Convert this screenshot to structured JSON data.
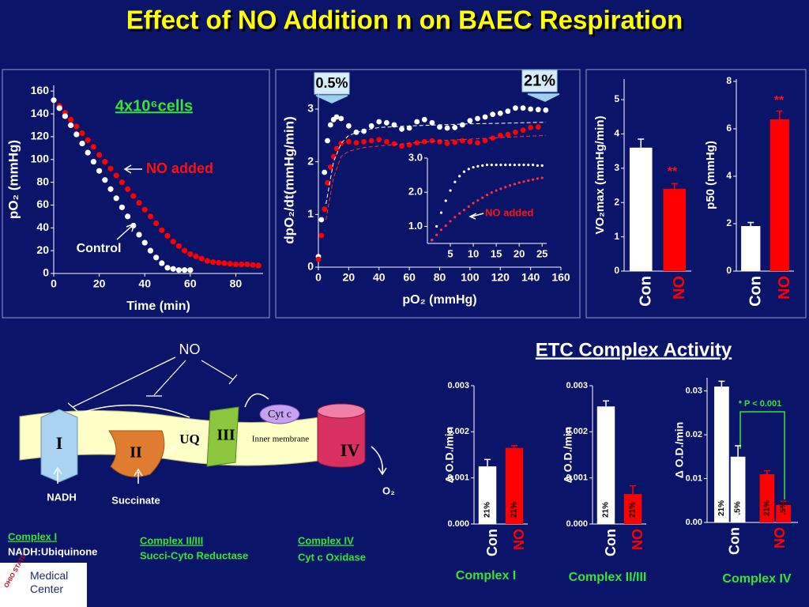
{
  "title": "Effect of NO Addition n on BAEC Respiration",
  "subtitle": "ETC Complex Activity",
  "chart_data": [
    {
      "type": "line",
      "xlabel": "Time (min)",
      "ylabel": "pO₂ (mmHg)",
      "annotations": [
        "4x10⁶cells",
        "NO added",
        "Control"
      ],
      "xlim": [
        0,
        92
      ],
      "xticks": [
        0,
        20,
        40,
        60,
        80
      ],
      "ylim": [
        0,
        165
      ],
      "yticks": [
        0,
        20,
        40,
        60,
        80,
        100,
        120,
        140,
        160
      ],
      "series": [
        {
          "name": "NO added",
          "color": "#ff0000",
          "style": "dots",
          "x": [
            0,
            2.5,
            5,
            7.5,
            10,
            12.5,
            15,
            17.5,
            20,
            22.5,
            25,
            27.5,
            30,
            32.5,
            35,
            37.5,
            40,
            42.5,
            45,
            47.5,
            50,
            52.5,
            55,
            57.5,
            60,
            62.5,
            65,
            67.5,
            70,
            72.5,
            75,
            77.5,
            80,
            82.5,
            85,
            87.5,
            90
          ],
          "values": [
            152,
            147,
            141,
            135,
            129,
            123,
            117,
            111,
            104,
            98,
            92,
            86,
            80,
            74,
            68,
            62,
            56,
            50,
            44,
            38,
            33,
            28,
            24,
            20,
            17,
            15,
            13,
            11,
            10,
            9.5,
            9,
            8.5,
            8,
            8,
            8,
            7.5,
            7
          ]
        },
        {
          "name": "Control",
          "color": "#ffffff",
          "style": "dots",
          "x": [
            0,
            2.5,
            5,
            7.5,
            10,
            12.5,
            15,
            17.5,
            20,
            22.5,
            25,
            27.5,
            30,
            32.5,
            35,
            37.5,
            40,
            42.5,
            45,
            47.5,
            50,
            52.5,
            55,
            57.5,
            60
          ],
          "values": [
            152,
            145,
            138,
            130,
            122,
            114,
            106,
            98,
            90,
            82,
            74,
            66,
            58,
            50,
            42,
            34,
            27,
            20,
            14,
            9,
            5,
            4,
            3,
            3,
            3
          ]
        }
      ]
    },
    {
      "type": "line",
      "xlabel": "pO₂ (mmHg)",
      "ylabel": "dpO₂/dt(mmHg/min)",
      "annotations": [
        "0.5%",
        "21%"
      ],
      "xlim": [
        0,
        160
      ],
      "xticks": [
        0,
        20,
        40,
        60,
        80,
        100,
        120,
        140,
        160
      ],
      "ylim": [
        0,
        3.3
      ],
      "yticks": [
        0,
        1,
        2,
        3
      ],
      "series": [
        {
          "color": "#ffffff",
          "style": "dots",
          "x": [
            0,
            2,
            4,
            6,
            8,
            10,
            12,
            15,
            20,
            25,
            30,
            35,
            40,
            45,
            50,
            55,
            60,
            65,
            70,
            75,
            80,
            85,
            90,
            95,
            100,
            105,
            110,
            115,
            120,
            125,
            130,
            135,
            140,
            145,
            150
          ],
          "values": [
            0.2,
            0.9,
            1.8,
            2.4,
            2.7,
            2.8,
            2.85,
            2.82,
            2.68,
            2.56,
            2.58,
            2.68,
            2.76,
            2.74,
            2.7,
            2.62,
            2.64,
            2.76,
            2.8,
            2.74,
            2.66,
            2.64,
            2.65,
            2.7,
            2.78,
            2.82,
            2.85,
            2.9,
            2.92,
            2.96,
            3.02,
            3.02,
            3.0,
            2.99,
            2.98
          ]
        },
        {
          "color": "#ff0000",
          "style": "dots",
          "x": [
            0,
            2,
            4,
            6,
            8,
            10,
            12,
            15,
            20,
            25,
            30,
            35,
            40,
            45,
            50,
            55,
            60,
            65,
            70,
            75,
            80,
            85,
            90,
            95,
            100,
            105,
            110,
            115,
            120,
            125,
            130,
            135,
            140,
            145
          ],
          "values": [
            0.15,
            0.6,
            1.1,
            1.6,
            1.9,
            2.1,
            2.25,
            2.35,
            2.38,
            2.36,
            2.38,
            2.4,
            2.42,
            2.38,
            2.34,
            2.3,
            2.32,
            2.36,
            2.38,
            2.4,
            2.38,
            2.35,
            2.37,
            2.4,
            2.38,
            2.36,
            2.4,
            2.45,
            2.5,
            2.52,
            2.56,
            2.6,
            2.65,
            2.66
          ]
        },
        {
          "color": "#ffffff",
          "style": "dashed",
          "x": [
            5,
            10,
            15,
            20,
            30,
            40,
            60,
            80,
            100,
            120,
            150
          ],
          "values": [
            1.2,
            2.0,
            2.35,
            2.5,
            2.6,
            2.65,
            2.68,
            2.7,
            2.72,
            2.73,
            2.75
          ]
        },
        {
          "color": "#ff3030",
          "style": "dashed",
          "x": [
            5,
            10,
            15,
            20,
            30,
            40,
            60,
            80,
            100,
            120,
            150
          ],
          "values": [
            0.9,
            1.7,
            2.1,
            2.2,
            2.27,
            2.3,
            2.35,
            2.4,
            2.43,
            2.46,
            2.5
          ]
        }
      ]
    },
    {
      "type": "line",
      "annotations": [
        "NO added"
      ],
      "xlim": [
        0,
        26
      ],
      "xticks": [
        5,
        10,
        15,
        20,
        25
      ],
      "ylim": [
        0.5,
        3.0
      ],
      "yticks": [
        {
          "value": 1,
          "label": "1.0"
        },
        {
          "value": 2,
          "label": "2.0"
        },
        {
          "value": 3,
          "label": "3.0"
        }
      ],
      "series": [
        {
          "color": "#ffffff",
          "style": "dots",
          "x": [
            1,
            2,
            3,
            4,
            5,
            6,
            7,
            8,
            9,
            10,
            11,
            12,
            13,
            14,
            15,
            16,
            17,
            18,
            19,
            20,
            21,
            22,
            23,
            24,
            25
          ],
          "values": [
            0.6,
            1.0,
            1.4,
            1.75,
            2.05,
            2.3,
            2.47,
            2.6,
            2.68,
            2.73,
            2.76,
            2.78,
            2.8,
            2.8,
            2.8,
            2.8,
            2.8,
            2.8,
            2.8,
            2.8,
            2.8,
            2.8,
            2.8,
            2.78,
            2.78
          ]
        },
        {
          "color": "#ff3030",
          "style": "dots",
          "x": [
            1,
            2,
            3,
            4,
            5,
            6,
            7,
            8,
            9,
            10,
            11,
            12,
            13,
            14,
            15,
            16,
            17,
            18,
            19,
            20,
            21,
            22,
            23,
            24,
            25
          ],
          "values": [
            0.6,
            0.75,
            0.9,
            1.02,
            1.15,
            1.27,
            1.38,
            1.48,
            1.58,
            1.68,
            1.76,
            1.84,
            1.92,
            1.99,
            2.05,
            2.1,
            2.15,
            2.2,
            2.24,
            2.28,
            2.31,
            2.34,
            2.37,
            2.4,
            2.42
          ]
        }
      ]
    },
    {
      "type": "bar",
      "ylabel": "VO₂max (mmHg/min)",
      "annotations": [
        "**"
      ],
      "categories": [
        "Con",
        "NO"
      ],
      "values": [
        3.6,
        2.4
      ],
      "errors": [
        0.25,
        0.15
      ],
      "colors": [
        "#ffffff",
        "#ff0000"
      ],
      "ylim": [
        0,
        5.6
      ],
      "yticks": [
        0,
        1,
        2,
        3,
        4,
        5
      ]
    },
    {
      "type": "bar",
      "ylabel": "p50 (mmHg)",
      "annotations": [
        "**"
      ],
      "categories": [
        "Con",
        "NO"
      ],
      "values": [
        1.9,
        6.4
      ],
      "errors": [
        0.15,
        0.35
      ],
      "colors": [
        "#ffffff",
        "#ff0000"
      ],
      "ylim": [
        0,
        8.1
      ],
      "yticks": [
        0,
        2,
        4,
        6,
        8
      ]
    },
    {
      "type": "bar",
      "title": "Complex I",
      "ylabel": "Δ O.D./min",
      "categories": [
        "Con",
        "NO"
      ],
      "colors": [
        "#ffffff",
        "#ff0000"
      ],
      "series": [
        {
          "name": "21%",
          "values": [
            0.00125,
            0.00165
          ],
          "errors": [
            0.00015,
            5e-05
          ]
        }
      ],
      "ylim": [
        0,
        0.003
      ],
      "yticks": [
        {
          "value": 0,
          "label": "0.000"
        },
        {
          "value": 0.001,
          "label": "0.001"
        },
        {
          "value": 0.002,
          "label": "0.002"
        },
        {
          "value": 0.003,
          "label": "0.003"
        }
      ]
    },
    {
      "type": "bar",
      "title": "Complex II/III",
      "ylabel": "Δ O.D./min",
      "categories": [
        "Con",
        "NO"
      ],
      "colors": [
        "#ffffff",
        "#ff0000"
      ],
      "series": [
        {
          "name": "21%",
          "values": [
            0.00255,
            0.00065
          ],
          "errors": [
            0.00012,
            0.00018
          ]
        }
      ],
      "ylim": [
        0,
        0.003
      ],
      "yticks": [
        {
          "value": 0,
          "label": "0.000"
        },
        {
          "value": 0.001,
          "label": "0.001"
        },
        {
          "value": 0.002,
          "label": "0.002"
        },
        {
          "value": 0.003,
          "label": "0.003"
        }
      ]
    },
    {
      "type": "bar",
      "title": "Complex IV",
      "ylabel": "Δ O.D./min",
      "annotations": [
        "* P < 0.001"
      ],
      "categories": [
        "Con",
        "NO"
      ],
      "colors": [
        "#ffffff",
        "#ff0000"
      ],
      "series": [
        {
          "name": "21%",
          "values": [
            0.031,
            0.011
          ],
          "errors": [
            0.0012,
            0.0008
          ]
        },
        {
          "name": ".5%",
          "values": [
            0.015,
            0.004
          ],
          "errors": [
            0.0025,
            0.0008
          ]
        }
      ],
      "ylim": [
        0,
        0.033
      ],
      "yticks": [
        {
          "value": 0,
          "label": "0.00"
        },
        {
          "value": 0.01,
          "label": "0.01"
        },
        {
          "value": 0.02,
          "label": "0.02"
        },
        {
          "value": 0.03,
          "label": "0.03"
        }
      ]
    }
  ],
  "diagram": {
    "no": "NO",
    "complexes": [
      "I",
      "II",
      "UQ",
      "III",
      "Cyt c",
      "IV"
    ],
    "membrane": "Inner membrane",
    "nadh": "NADH",
    "succinate": "Succinate",
    "o2": "O₂"
  },
  "footnotes": [
    [
      "Complex I",
      "NADH:Ubiquinone"
    ],
    [
      "Complex II/III",
      " Succi-Cyto Reductase"
    ],
    [
      "Complex IV",
      "Cyt c Oxidase"
    ]
  ],
  "logo": {
    "university": "OHIO STATE",
    "name": "Medical Center"
  }
}
